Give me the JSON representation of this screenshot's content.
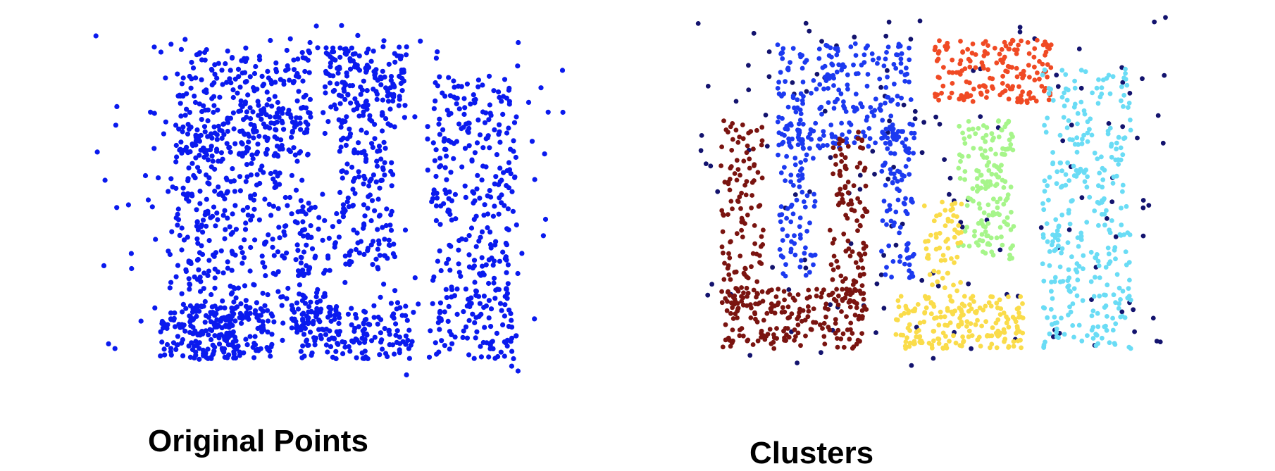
{
  "captions": {
    "left": "Original Points",
    "right": "Clusters"
  },
  "chart_data": [
    {
      "type": "scatter",
      "title": "",
      "caption": "Original Points",
      "xlim": [
        0,
        100
      ],
      "ylim": [
        0,
        100
      ],
      "grid": false,
      "axes_visible": false,
      "series": [
        {
          "color": "#0a1aee",
          "shape_note": "points form four dense letter-like shapes plus sparse noise",
          "regions": [
            {
              "x": [
                16,
                30
              ],
              "y": [
                5,
                70
              ],
              "count": 230
            },
            {
              "x": [
                14,
                38
              ],
              "y": [
                5,
                20
              ],
              "count": 170
            },
            {
              "x": [
                17,
                46
              ],
              "y": [
                62,
                92
              ],
              "count": 260
            },
            {
              "x": [
                30,
                46
              ],
              "y": [
                15,
                75
              ],
              "count": 150
            },
            {
              "x": [
                49,
                67
              ],
              "y": [
                75,
                93
              ],
              "count": 150
            },
            {
              "x": [
                52,
                64
              ],
              "y": [
                30,
                75
              ],
              "count": 150
            },
            {
              "x": [
                42,
                68
              ],
              "y": [
                5,
                20
              ],
              "count": 170
            },
            {
              "x": [
                43,
                52
              ],
              "y": [
                15,
                48
              ],
              "count": 70
            },
            {
              "x": [
                72,
                90
              ],
              "y": [
                5,
                85
              ],
              "count": 330
            },
            {
              "x": [
                0,
                100
              ],
              "y": [
                0,
                100
              ],
              "count": 180
            }
          ]
        }
      ]
    },
    {
      "type": "scatter",
      "title": "",
      "caption": "Clusters",
      "xlim": [
        0,
        100
      ],
      "ylim": [
        0,
        100
      ],
      "grid": false,
      "axes_visible": false,
      "series": [
        {
          "color": "#13136e",
          "regions": [
            {
              "x": [
                0,
                100
              ],
              "y": [
                0,
                100
              ],
              "count": 150
            }
          ]
        },
        {
          "color": "#1c3af0",
          "regions": [
            {
              "x": [
                17,
                46
              ],
              "y": [
                62,
                92
              ],
              "count": 240
            },
            {
              "x": [
                17,
                25
              ],
              "y": [
                25,
                70
              ],
              "count": 90
            },
            {
              "x": [
                39,
                46
              ],
              "y": [
                25,
                70
              ],
              "count": 90
            }
          ]
        },
        {
          "color": "#7a1410",
          "regions": [
            {
              "x": [
                5,
                35
              ],
              "y": [
                5,
                22
              ],
              "count": 200
            },
            {
              "x": [
                5,
                14
              ],
              "y": [
                15,
                70
              ],
              "count": 120
            },
            {
              "x": [
                28,
                36
              ],
              "y": [
                15,
                68
              ],
              "count": 110
            }
          ]
        },
        {
          "color": "#f04a24",
          "regions": [
            {
              "x": [
                50,
                75
              ],
              "y": [
                75,
                93
              ],
              "count": 170
            }
          ]
        },
        {
          "color": "#a6f58a",
          "regions": [
            {
              "x": [
                55,
                67
              ],
              "y": [
                30,
                70
              ],
              "count": 160
            }
          ]
        },
        {
          "color": "#fadc4a",
          "regions": [
            {
              "x": [
                42,
                69
              ],
              "y": [
                5,
                20
              ],
              "count": 180
            },
            {
              "x": [
                48,
                56
              ],
              "y": [
                15,
                48
              ],
              "count": 70
            }
          ]
        },
        {
          "color": "#6adcf5",
          "regions": [
            {
              "x": [
                73,
                92
              ],
              "y": [
                5,
                85
              ],
              "count": 320
            }
          ]
        }
      ]
    }
  ]
}
